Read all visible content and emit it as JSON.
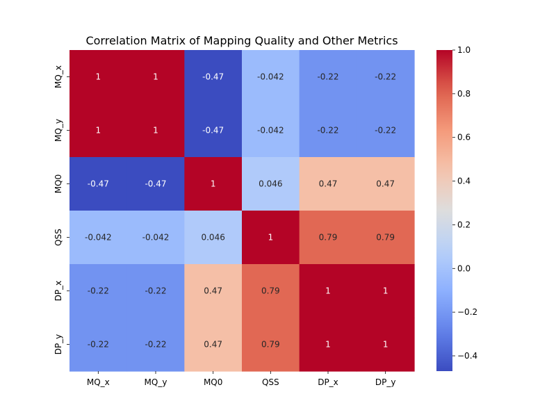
{
  "chart_data": {
    "type": "heatmap",
    "title": "Correlation Matrix of Mapping Quality and Other Metrics",
    "xlabel": "",
    "ylabel": "",
    "x_categories": [
      "MQ_x",
      "MQ_y",
      "MQ0",
      "QSS",
      "DP_x",
      "DP_y"
    ],
    "y_categories": [
      "MQ_x",
      "MQ_y",
      "MQ0",
      "QSS",
      "DP_x",
      "DP_y"
    ],
    "values": [
      [
        1,
        1,
        -0.47,
        -0.042,
        -0.22,
        -0.22
      ],
      [
        1,
        1,
        -0.47,
        -0.042,
        -0.22,
        -0.22
      ],
      [
        -0.47,
        -0.47,
        1,
        0.046,
        0.47,
        0.47
      ],
      [
        -0.042,
        -0.042,
        0.046,
        1,
        0.79,
        0.79
      ],
      [
        -0.22,
        -0.22,
        0.47,
        0.79,
        1,
        1
      ],
      [
        -0.22,
        -0.22,
        0.47,
        0.79,
        1,
        1
      ]
    ],
    "annotations": [
      [
        "1",
        "1",
        "-0.47",
        "-0.042",
        "-0.22",
        "-0.22"
      ],
      [
        "1",
        "1",
        "-0.47",
        "-0.042",
        "-0.22",
        "-0.22"
      ],
      [
        "-0.47",
        "-0.47",
        "1",
        "0.046",
        "0.47",
        "0.47"
      ],
      [
        "-0.042",
        "-0.042",
        "0.046",
        "1",
        "0.79",
        "0.79"
      ],
      [
        "-0.22",
        "-0.22",
        "0.47",
        "0.79",
        "1",
        "1"
      ],
      [
        "-0.22",
        "-0.22",
        "0.47",
        "0.79",
        "1",
        "1"
      ]
    ],
    "colormap": "coolwarm",
    "colorbar": {
      "vmin": -0.47,
      "vmax": 1.0,
      "ticks": [
        -0.4,
        -0.2,
        0.0,
        0.2,
        0.4,
        0.6,
        0.8,
        1.0
      ],
      "tick_labels": [
        "−0.4",
        "−0.2",
        "0.0",
        "0.2",
        "0.4",
        "0.6",
        "0.8",
        "1.0"
      ]
    },
    "grid": false
  }
}
